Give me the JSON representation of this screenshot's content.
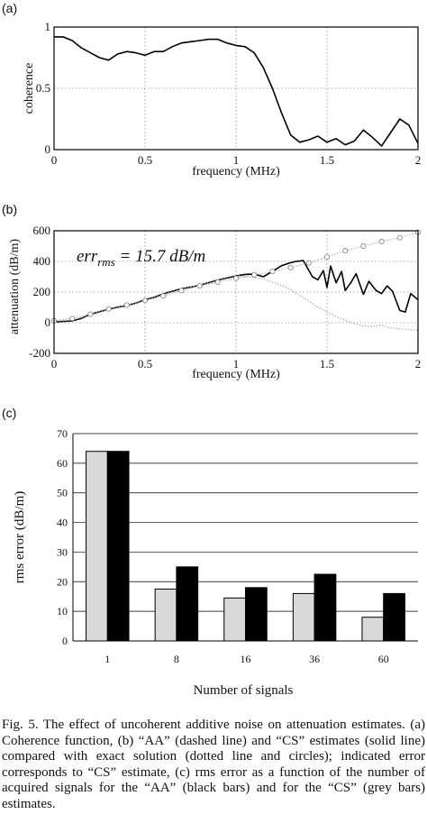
{
  "chart_data": [
    {
      "panel_label": "(a)",
      "type": "line",
      "xlabel": "frequency (MHz)",
      "ylabel": "coherence",
      "xlim": [
        0,
        2
      ],
      "ylim": [
        0,
        1
      ],
      "x_ticks": [
        "0",
        "0.5",
        "1",
        "1.5",
        "2"
      ],
      "y_ticks": [
        "0",
        "0.5",
        "1"
      ],
      "grid": true,
      "series": [
        {
          "style": "solid",
          "x": [
            0,
            0.05,
            0.1,
            0.15,
            0.2,
            0.25,
            0.3,
            0.35,
            0.4,
            0.45,
            0.5,
            0.55,
            0.6,
            0.65,
            0.7,
            0.75,
            0.8,
            0.85,
            0.9,
            0.95,
            1.0,
            1.05,
            1.1,
            1.15,
            1.2,
            1.25,
            1.3,
            1.35,
            1.4,
            1.45,
            1.5,
            1.55,
            1.6,
            1.65,
            1.7,
            1.75,
            1.8,
            1.85,
            1.9,
            1.95,
            2.0
          ],
          "y": [
            0.92,
            0.92,
            0.89,
            0.83,
            0.79,
            0.75,
            0.73,
            0.78,
            0.8,
            0.79,
            0.77,
            0.8,
            0.8,
            0.84,
            0.87,
            0.88,
            0.89,
            0.9,
            0.9,
            0.87,
            0.85,
            0.84,
            0.79,
            0.67,
            0.5,
            0.3,
            0.12,
            0.06,
            0.08,
            0.11,
            0.06,
            0.09,
            0.04,
            0.07,
            0.16,
            0.1,
            0.03,
            0.14,
            0.25,
            0.2,
            0.05
          ]
        }
      ]
    },
    {
      "panel_label": "(b)",
      "type": "line",
      "xlabel": "frequency (MHz)",
      "ylabel": "attenuation (dB/m)",
      "xlim": [
        0,
        2
      ],
      "ylim": [
        -200,
        600
      ],
      "x_ticks": [
        "0",
        "0.5",
        "1",
        "1.5",
        "2"
      ],
      "y_ticks": [
        "-200",
        "0",
        "200",
        "400",
        "600"
      ],
      "grid": true,
      "annotation": {
        "main": "err",
        "sub": "rms",
        "rest": " = 15.7 dB/m"
      },
      "series": [
        {
          "style": "solid",
          "x": [
            0,
            0.05,
            0.1,
            0.15,
            0.2,
            0.25,
            0.3,
            0.35,
            0.4,
            0.45,
            0.5,
            0.55,
            0.6,
            0.65,
            0.7,
            0.75,
            0.8,
            0.85,
            0.9,
            0.95,
            1.0,
            1.05,
            1.1,
            1.15,
            1.2,
            1.25,
            1.3,
            1.33,
            1.37,
            1.42,
            1.45,
            1.48,
            1.5,
            1.52,
            1.55,
            1.58,
            1.6,
            1.63,
            1.66,
            1.7,
            1.73,
            1.77,
            1.8,
            1.83,
            1.86,
            1.9,
            1.93,
            1.96,
            2.0
          ],
          "y": [
            5,
            8,
            12,
            28,
            55,
            72,
            88,
            102,
            112,
            128,
            150,
            165,
            188,
            205,
            222,
            232,
            245,
            262,
            278,
            292,
            305,
            315,
            318,
            300,
            335,
            372,
            392,
            400,
            405,
            300,
            280,
            340,
            230,
            370,
            260,
            335,
            210,
            260,
            320,
            185,
            270,
            210,
            190,
            240,
            205,
            80,
            70,
            190,
            150
          ]
        },
        {
          "style": "dotted",
          "x": [
            0,
            0.1,
            0.2,
            0.3,
            0.4,
            0.5,
            0.6,
            0.7,
            0.8,
            0.9,
            1.0,
            1.05,
            1.1,
            1.15,
            1.2,
            1.25,
            1.3,
            1.35,
            1.4,
            1.45,
            1.5,
            1.55,
            1.6,
            1.65,
            1.7,
            1.75,
            1.8,
            1.85,
            1.9,
            1.95,
            2.0
          ],
          "y": [
            8,
            15,
            50,
            85,
            110,
            145,
            185,
            220,
            245,
            280,
            310,
            300,
            295,
            285,
            265,
            245,
            215,
            180,
            140,
            100,
            70,
            40,
            15,
            -5,
            -20,
            -25,
            -15,
            -35,
            -40,
            -45,
            -50
          ]
        },
        {
          "style": "dotted-circles",
          "x": [
            0,
            0.1,
            0.2,
            0.3,
            0.4,
            0.5,
            0.6,
            0.7,
            0.8,
            0.9,
            1.0,
            1.1,
            1.2,
            1.3,
            1.4,
            1.5,
            1.6,
            1.7,
            1.8,
            1.9,
            2.0
          ],
          "y": [
            12,
            28,
            55,
            90,
            115,
            145,
            175,
            210,
            240,
            265,
            290,
            312,
            335,
            360,
            390,
            430,
            470,
            500,
            530,
            555,
            590
          ]
        }
      ]
    },
    {
      "panel_label": "(c)",
      "type": "bar",
      "xlabel": "Number of signals",
      "ylabel": "rms error (dB/m)",
      "ylim": [
        0,
        70
      ],
      "y_ticks": [
        "0",
        "10",
        "20",
        "30",
        "40",
        "50",
        "60",
        "70"
      ],
      "categories": [
        "1",
        "8",
        "16",
        "36",
        "60"
      ],
      "grid": true,
      "series": [
        {
          "color": "#d9d9d9",
          "values": [
            64,
            17.5,
            14.5,
            16,
            8
          ]
        },
        {
          "color": "#000000",
          "values": [
            64,
            25,
            18,
            22.5,
            16
          ]
        }
      ]
    }
  ],
  "caption": "Fig. 5. The effect of uncoherent additive noise on attenuation estimates. (a) Coherence function, (b) “AA” (dashed line) and “CS” estimates (solid line) compared with exact solution (dotted line and circles); indicated error corresponds to “CS” estimate, (c) rms error as a function of the number of acquired signals for the “AA” (black bars) and for the “CS” (grey bars) estimates."
}
